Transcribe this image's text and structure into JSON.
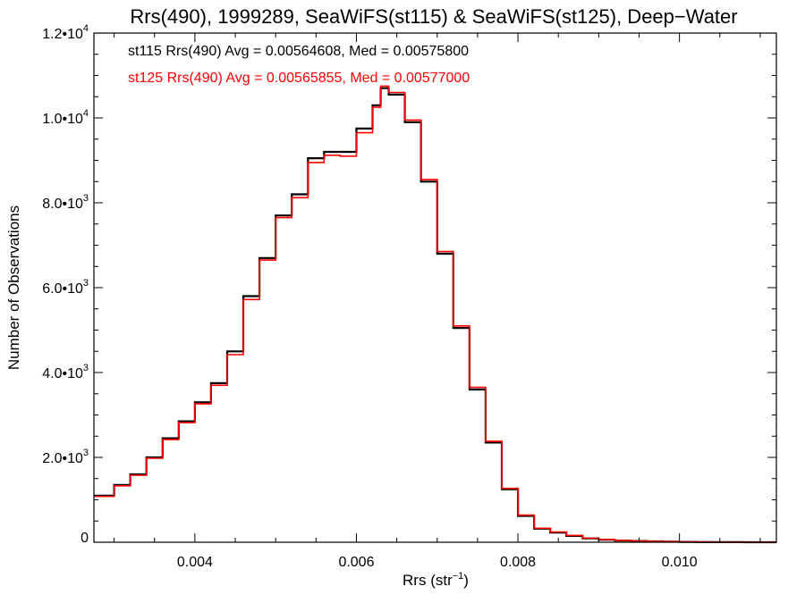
{
  "chart_data": {
    "type": "line",
    "title": "Rrs(490), 1999289, SeaWiFS(st115) & SeaWiFS(st125), Deep−Water",
    "xlabel": "Rrs (str",
    "xlabel_sup": "−1",
    "xlabel_end": ")",
    "ylabel": "Number of Observations",
    "xlim": [
      0.00275,
      0.0112
    ],
    "ylim": [
      0,
      12000
    ],
    "xticks": [
      {
        "value": 0.004,
        "label": "0.004"
      },
      {
        "value": 0.006,
        "label": "0.006"
      },
      {
        "value": 0.008,
        "label": "0.008"
      },
      {
        "value": 0.01,
        "label": "0.010"
      }
    ],
    "yticks": [
      {
        "value": 0,
        "mant": "0",
        "exp": ""
      },
      {
        "value": 2000,
        "mant": "2.0•10",
        "exp": "3"
      },
      {
        "value": 4000,
        "mant": "4.0•10",
        "exp": "3"
      },
      {
        "value": 6000,
        "mant": "6.0•10",
        "exp": "3"
      },
      {
        "value": 8000,
        "mant": "8.0•10",
        "exp": "3"
      },
      {
        "value": 10000,
        "mant": "1.0•10",
        "exp": "4"
      },
      {
        "value": 12000,
        "mant": "1.2•10",
        "exp": "4"
      }
    ],
    "annotations": [
      {
        "text": "st115 Rrs(490) Avg = 0.00564608, Med = 0.00575800",
        "color": "#000000"
      },
      {
        "text": "st125 Rrs(490) Avg = 0.00565855, Med = 0.00577000",
        "color": "#ff0000"
      }
    ],
    "series": [
      {
        "color": "#000000",
        "render": "histogram-step",
        "x": [
          0.00275,
          0.003,
          0.0032,
          0.0034,
          0.0036,
          0.0038,
          0.004,
          0.0042,
          0.0044,
          0.0046,
          0.0048,
          0.005,
          0.0052,
          0.0054,
          0.0056,
          0.0058,
          0.006,
          0.0062,
          0.0063,
          0.0064,
          0.0066,
          0.0068,
          0.007,
          0.0072,
          0.0074,
          0.0076,
          0.0078,
          0.008,
          0.0082,
          0.0084,
          0.0086,
          0.0088,
          0.009,
          0.0092,
          0.0094,
          0.0096,
          0.0098,
          0.01,
          0.0102,
          0.0104,
          0.0106,
          0.0108,
          0.011,
          0.0112
        ],
        "values": [
          1100,
          1350,
          1600,
          2000,
          2450,
          2850,
          3300,
          3750,
          4500,
          5800,
          6700,
          7700,
          8200,
          9050,
          9200,
          9200,
          9750,
          10300,
          10700,
          10550,
          9900,
          8500,
          6800,
          5050,
          3600,
          2350,
          1250,
          620,
          320,
          230,
          150,
          90,
          60,
          40,
          30,
          20,
          12,
          8,
          5,
          3,
          2,
          1,
          0,
          0
        ]
      },
      {
        "color": "#ff0000",
        "render": "histogram-step",
        "x": [
          0.00275,
          0.003,
          0.0032,
          0.0034,
          0.0036,
          0.0038,
          0.004,
          0.0042,
          0.0044,
          0.0046,
          0.0048,
          0.005,
          0.0052,
          0.0054,
          0.0056,
          0.0058,
          0.006,
          0.0062,
          0.0063,
          0.0064,
          0.0066,
          0.0068,
          0.007,
          0.0072,
          0.0074,
          0.0076,
          0.0078,
          0.008,
          0.0082,
          0.0084,
          0.0086,
          0.0088,
          0.009,
          0.0092,
          0.0094,
          0.0096,
          0.0098,
          0.01,
          0.0102,
          0.0104,
          0.0106,
          0.0108,
          0.011,
          0.0112
        ],
        "values": [
          1080,
          1330,
          1580,
          1980,
          2420,
          2820,
          3260,
          3700,
          4420,
          5720,
          6650,
          7650,
          8120,
          8950,
          9120,
          9100,
          9650,
          10250,
          10750,
          10600,
          9950,
          8550,
          6850,
          5100,
          3650,
          2380,
          1270,
          640,
          330,
          240,
          160,
          95,
          65,
          45,
          32,
          22,
          14,
          9,
          6,
          4,
          2,
          1,
          0,
          0
        ]
      }
    ]
  }
}
